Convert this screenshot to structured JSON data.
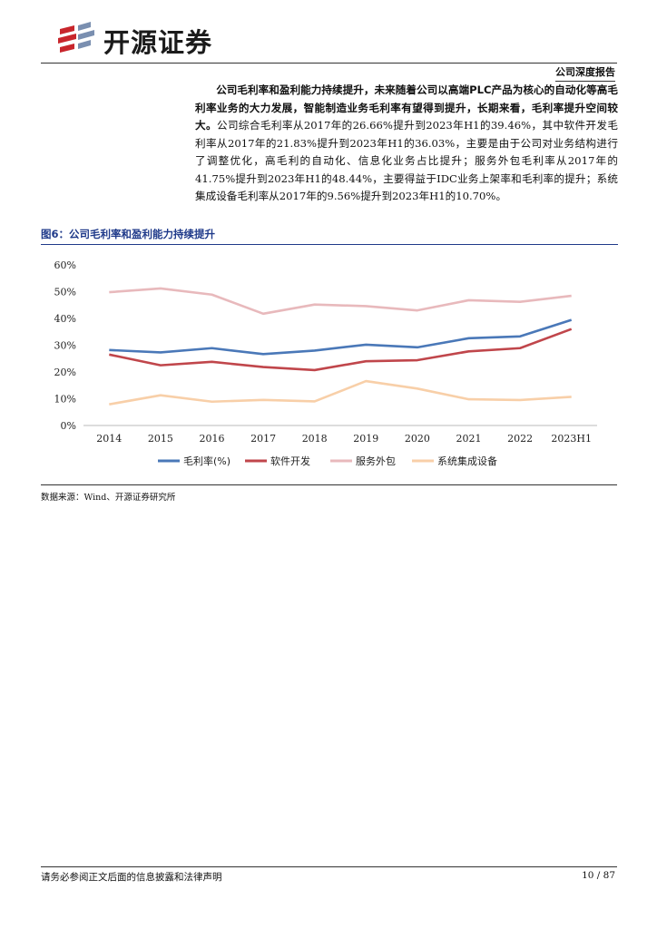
{
  "header": {
    "logo_text": "开源证券",
    "tag": "公司深度报告"
  },
  "body": {
    "bold": "公司毛利率和盈利能力持续提升，未来随着公司以高端PLC产品为核心的自动化等高毛利率业务的大力发展，智能制造业务毛利率有望得到提升，长期来看，毛利率提升空间较大。",
    "text": "公司综合毛利率从2017年的26.66%提升到2023年H1的39.46%，其中软件开发毛利率从2017年的21.83%提升到2023年H1的36.03%，主要是由于公司对业务结构进行了调整优化，高毛利的自动化、信息化业务占比提升；服务外包毛利率从2017年的41.75%提升到2023年H1的48.44%，主要得益于IDC业务上架率和毛利率的提升；系统集成设备毛利率从2017年的9.56%提升到2023年H1的10.70%。"
  },
  "figure": {
    "title": "图6：公司毛利率和盈利能力持续提升",
    "source": "数据来源：Wind、开源证券研究所"
  },
  "chart_data": {
    "type": "line",
    "categories": [
      "2014",
      "2015",
      "2016",
      "2017",
      "2018",
      "2019",
      "2020",
      "2021",
      "2022",
      "2023H1"
    ],
    "ylim": [
      0,
      60
    ],
    "yticks": [
      "0%",
      "10%",
      "20%",
      "30%",
      "40%",
      "50%",
      "60%"
    ],
    "grid": false,
    "legend": "bottom",
    "series": [
      {
        "name": "毛利率(%)",
        "color": "#4a78b8",
        "values": [
          28.2,
          27.3,
          28.9,
          26.66,
          28.0,
          30.2,
          29.2,
          32.6,
          33.3,
          39.46
        ]
      },
      {
        "name": "软件开发",
        "color": "#c0464b",
        "values": [
          26.5,
          22.5,
          23.8,
          21.83,
          20.7,
          24.0,
          24.4,
          27.7,
          28.9,
          36.03
        ]
      },
      {
        "name": "服务外包",
        "color": "#e8b9bc",
        "values": [
          49.8,
          51.2,
          48.9,
          41.75,
          45.2,
          44.6,
          43.0,
          46.8,
          46.2,
          48.44
        ]
      },
      {
        "name": "系统集成设备",
        "color": "#f8cfa8",
        "values": [
          7.9,
          11.3,
          8.9,
          9.56,
          9.0,
          16.6,
          13.8,
          9.8,
          9.5,
          10.7
        ]
      }
    ]
  },
  "footer": {
    "disclaimer": "请务必参阅正文后面的信息披露和法律声明",
    "page": "10 / 87"
  }
}
